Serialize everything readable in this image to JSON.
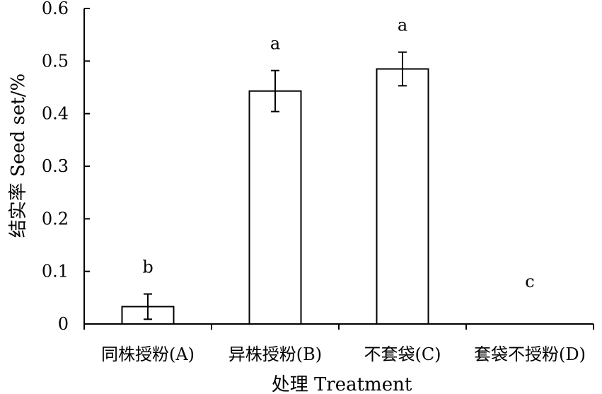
{
  "chart_data": {
    "type": "bar",
    "categories": [
      "同株授粉(A)",
      "异株授粉(B)",
      "不套袋(C)",
      "套袋不授粉(D)"
    ],
    "values": [
      0.033,
      0.443,
      0.485,
      0.0
    ],
    "errors": [
      0.024,
      0.039,
      0.032,
      0.0
    ],
    "significance": [
      "b",
      "a",
      "a",
      "c"
    ],
    "xlabel": "处理 Treatment",
    "ylabel": "结实率 Seed set/%",
    "ylim": [
      0,
      0.6
    ],
    "yticks": [
      0,
      0.1,
      0.2,
      0.3,
      0.4,
      0.5,
      0.6
    ],
    "ytick_labels": [
      "0",
      "0.1",
      "0.2",
      "0.3",
      "0.4",
      "0.5",
      "0.6"
    ],
    "grid": false,
    "bar_fill": "#ffffff",
    "bar_stroke": "#000000"
  }
}
